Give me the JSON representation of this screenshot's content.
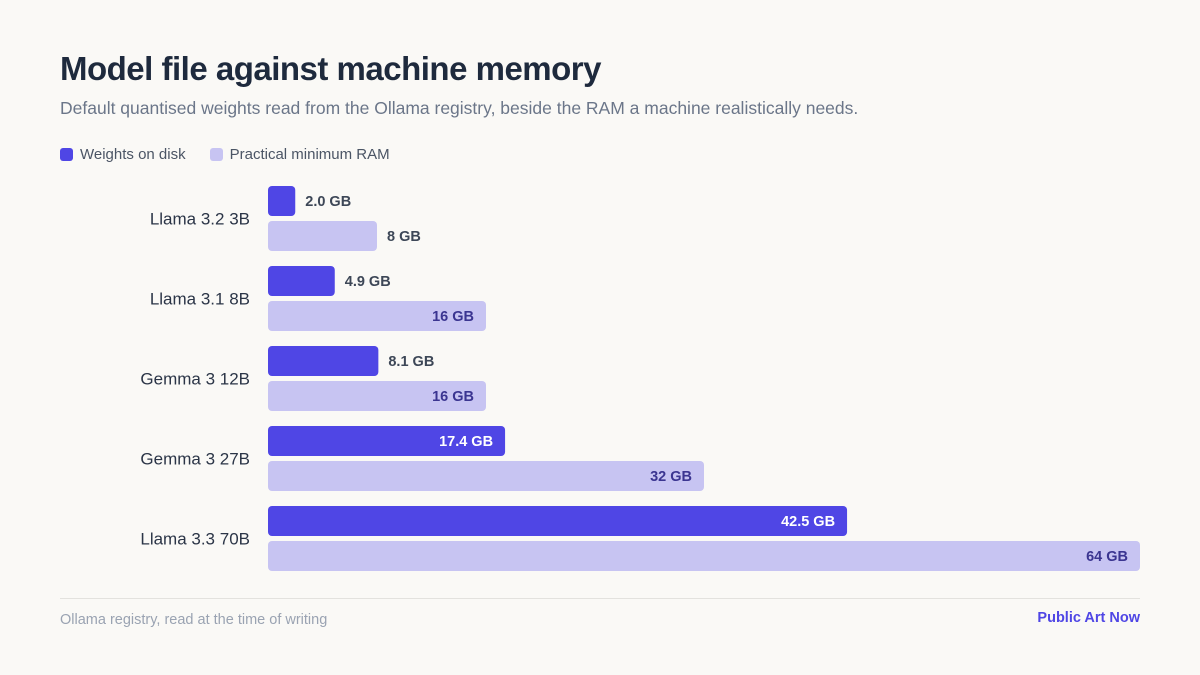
{
  "header": {
    "title": "Model file against machine memory",
    "subtitle": "Default quantised weights read from the Ollama registry, beside the RAM a machine realistically needs."
  },
  "legend": {
    "weights_label": "Weights on disk",
    "ram_label": "Practical minimum RAM"
  },
  "footer": {
    "source": "Ollama registry, read at the time of writing",
    "brand": "Public Art Now"
  },
  "colors": {
    "weights": "#4f46e5",
    "ram": "#c7c4f2",
    "weights_label_inside": "#ffffff",
    "ram_label_inside": "#3b3591",
    "label_outside": "#3d4757"
  },
  "chart_data": {
    "type": "bar",
    "orientation": "horizontal",
    "categories": [
      "Llama 3.2 3B",
      "Llama 3.1 8B",
      "Gemma 3 12B",
      "Gemma 3 27B",
      "Llama 3.3 70B"
    ],
    "unit": "GB",
    "xlim": [
      0,
      64
    ],
    "grid": false,
    "legend_position": "top-left",
    "series": [
      {
        "name": "Weights on disk",
        "values": [
          2.0,
          4.9,
          8.1,
          17.4,
          42.5
        ],
        "labels": [
          "2.0 GB",
          "4.9 GB",
          "8.1 GB",
          "17.4 GB",
          "42.5 GB"
        ]
      },
      {
        "name": "Practical minimum RAM",
        "values": [
          8,
          16,
          16,
          32,
          64
        ],
        "labels": [
          "8 GB",
          "16 GB",
          "16 GB",
          "32 GB",
          "64 GB"
        ]
      }
    ]
  }
}
